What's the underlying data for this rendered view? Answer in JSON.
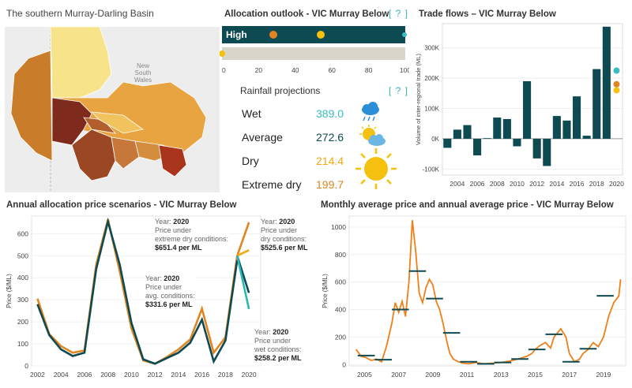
{
  "map": {
    "title": "The southern Murray-Darling Basin",
    "label_nsw_1": "New",
    "label_nsw_2": "South",
    "label_nsw_3": "Wales"
  },
  "allocation": {
    "title": "Allocation outlook - VIC Murray Below",
    "help": "[ ? ]",
    "bar_label": "High",
    "axis_ticks": [
      "0",
      "20",
      "40",
      "60",
      "80",
      "100"
    ],
    "colors": {
      "bar1": "#0d4a52",
      "bar2": "#d9d5cb",
      "marker_orange": "#e0851f",
      "marker_yellow": "#f5c10e",
      "marker_teal": "#3bbcc2"
    }
  },
  "rainfall": {
    "title": "Rainfall projections",
    "help": "[ ? ]",
    "rows": [
      {
        "label": "Wet",
        "value": "389.0",
        "color": "#3bbcc2",
        "icon": "rain-cloud-icon"
      },
      {
        "label": "Average",
        "value": "272.6",
        "color": "#0d4a52",
        "icon": "sun-cloud-icon"
      },
      {
        "label": "Dry",
        "value": "214.4",
        "color": "#f5a70e",
        "icon": "sun-icon"
      },
      {
        "label": "Extreme dry",
        "value": "199.7",
        "color": "#e0851f",
        "icon": "big-sun-icon"
      }
    ]
  },
  "chart_data": [
    {
      "id": "trade",
      "type": "bar",
      "title": "Trade flows – VIC Murray Below",
      "ylabel": "Volume of inter-regional trade (ML)",
      "x": [
        2003,
        2004,
        2005,
        2006,
        2007,
        2008,
        2009,
        2010,
        2011,
        2012,
        2013,
        2014,
        2015,
        2016,
        2017,
        2018,
        2019
      ],
      "values": [
        -30000,
        30000,
        45000,
        -55000,
        2000,
        70000,
        65000,
        -25000,
        190000,
        -65000,
        -90000,
        75000,
        60000,
        140000,
        10000,
        230000,
        370000
      ],
      "ylim": [
        -120000,
        380000
      ],
      "yticks": [
        -100000,
        0,
        100000,
        200000,
        300000
      ],
      "ytick_labels": [
        "-100K",
        "0K",
        "100K",
        "200K",
        "300K"
      ],
      "xticks": [
        "2004",
        "2006",
        "2008",
        "2010",
        "2012",
        "2014",
        "2016",
        "2018",
        "2020"
      ],
      "markers": [
        {
          "x": 2020,
          "value": 225000,
          "color": "#3bbcc2"
        },
        {
          "x": 2020,
          "value": 180000,
          "color": "#e0851f"
        },
        {
          "x": 2020,
          "value": 160000,
          "color": "#f5c10e"
        }
      ],
      "bar_color": "#0d4a52"
    },
    {
      "id": "annual",
      "type": "line",
      "title": "Annual allocation price scenarios - VIC Murray Below",
      "ylabel": "Price ($/ML)",
      "xlim": [
        2001.5,
        2021
      ],
      "ylim": [
        0,
        680
      ],
      "yticks": [
        0,
        100,
        200,
        300,
        400,
        500,
        600
      ],
      "xticks": [
        "2002",
        "2004",
        "2006",
        "2008",
        "2010",
        "2012",
        "2014",
        "2016",
        "2018",
        "2020"
      ],
      "series": [
        {
          "color": "#e0851f",
          "x": [
            2002,
            2003,
            2004,
            2005,
            2006,
            2007,
            2008,
            2009,
            2010,
            2011,
            2012,
            2013,
            2014,
            2015,
            2016,
            2017,
            2018,
            2019
          ],
          "values": [
            305,
            145,
            90,
            60,
            70,
            460,
            665,
            430,
            170,
            25,
            10,
            40,
            75,
            120,
            260,
            60,
            130,
            500
          ]
        },
        {
          "color": "#0d4a52",
          "x": [
            2002,
            2003,
            2004,
            2005,
            2006,
            2007,
            2008,
            2009,
            2010,
            2011,
            2012,
            2013,
            2014,
            2015,
            2016,
            2017,
            2018,
            2019
          ],
          "values": [
            280,
            140,
            75,
            45,
            60,
            440,
            655,
            460,
            195,
            30,
            10,
            35,
            60,
            105,
            210,
            20,
            115,
            480
          ]
        }
      ],
      "scenarios": [
        {
          "color": "#e0851f",
          "from": 500,
          "to": 651.4
        },
        {
          "color": "#f5a70e",
          "from": 500,
          "to": 525.6
        },
        {
          "color": "#0d4a52",
          "from": 500,
          "to": 331.6
        },
        {
          "color": "#2bb7b3",
          "from": 500,
          "to": 258.2
        }
      ],
      "tooltips": [
        {
          "year_label": "Year:",
          "year": "2020",
          "l1": "Price under",
          "l2": "extreme dry conditions:",
          "value": "$651.4 per ML"
        },
        {
          "year_label": "Year:",
          "year": "2020",
          "l1": "Price under",
          "l2": "dry conditions:",
          "value": "$525.6 per ML"
        },
        {
          "year_label": "Year:",
          "year": "2020",
          "l1": "Price under",
          "l2": "avg. conditions:",
          "value": "$331.6 per ML"
        },
        {
          "year_label": "Year:",
          "year": "2020",
          "l1": "Price under",
          "l2": "wet conditions:",
          "value": "$258.2 per ML"
        }
      ]
    },
    {
      "id": "monthly",
      "type": "line",
      "title": "Monthly average price and annual average price - VIC Murray Below",
      "ylabel": "Price ($/ML)",
      "xlim": [
        2004.1,
        2020.3
      ],
      "ylim": [
        -10,
        1080
      ],
      "yticks": [
        0,
        200,
        400,
        600,
        800,
        1000
      ],
      "xticks": [
        "2005",
        "2007",
        "2009",
        "2011",
        "2013",
        "2015",
        "2017",
        "2019"
      ],
      "xtick_values": [
        2005,
        2007,
        2009,
        2011,
        2013,
        2015,
        2017,
        2019
      ],
      "line_color": "#f07f18",
      "x": [
        2004.5,
        2004.8,
        2005.1,
        2005.4,
        2005.7,
        2006.0,
        2006.3,
        2006.6,
        2006.8,
        2007.0,
        2007.2,
        2007.4,
        2007.6,
        2007.8,
        2008.0,
        2008.2,
        2008.4,
        2008.6,
        2008.8,
        2009.0,
        2009.2,
        2009.4,
        2009.6,
        2009.8,
        2010.0,
        2010.2,
        2010.5,
        2010.8,
        2011.1,
        2011.5,
        2012.0,
        2012.5,
        2013.0,
        2013.5,
        2014.0,
        2014.5,
        2014.8,
        2015.0,
        2015.3,
        2015.6,
        2015.9,
        2016.1,
        2016.3,
        2016.5,
        2016.8,
        2017.0,
        2017.3,
        2017.6,
        2017.8,
        2018.1,
        2018.4,
        2018.7,
        2019.0,
        2019.3,
        2019.6,
        2019.9,
        2020.0
      ],
      "values": [
        110,
        60,
        50,
        30,
        40,
        20,
        140,
        300,
        450,
        380,
        460,
        350,
        600,
        1050,
        820,
        520,
        450,
        560,
        620,
        580,
        460,
        400,
        300,
        180,
        80,
        40,
        20,
        10,
        5,
        15,
        5,
        10,
        15,
        25,
        40,
        60,
        80,
        110,
        140,
        160,
        120,
        200,
        230,
        260,
        200,
        80,
        20,
        40,
        80,
        110,
        160,
        130,
        200,
        350,
        450,
        500,
        620
      ],
      "annual_averages": [
        {
          "x0": 2004.6,
          "x1": 2005.6,
          "value": 65
        },
        {
          "x0": 2005.6,
          "x1": 2006.6,
          "value": 35
        },
        {
          "x0": 2006.6,
          "x1": 2007.6,
          "value": 400
        },
        {
          "x0": 2007.6,
          "x1": 2008.6,
          "value": 680
        },
        {
          "x0": 2008.6,
          "x1": 2009.6,
          "value": 480
        },
        {
          "x0": 2009.6,
          "x1": 2010.6,
          "value": 230
        },
        {
          "x0": 2010.6,
          "x1": 2011.6,
          "value": 20
        },
        {
          "x0": 2011.6,
          "x1": 2012.6,
          "value": 5
        },
        {
          "x0": 2012.6,
          "x1": 2013.6,
          "value": 15
        },
        {
          "x0": 2013.6,
          "x1": 2014.6,
          "value": 40
        },
        {
          "x0": 2014.6,
          "x1": 2015.6,
          "value": 110
        },
        {
          "x0": 2015.6,
          "x1": 2016.6,
          "value": 220
        },
        {
          "x0": 2016.6,
          "x1": 2017.6,
          "value": 20
        },
        {
          "x0": 2017.6,
          "x1": 2018.6,
          "value": 115
        },
        {
          "x0": 2018.6,
          "x1": 2019.6,
          "value": 500
        }
      ],
      "avg_color": "#0d4a52"
    }
  ]
}
